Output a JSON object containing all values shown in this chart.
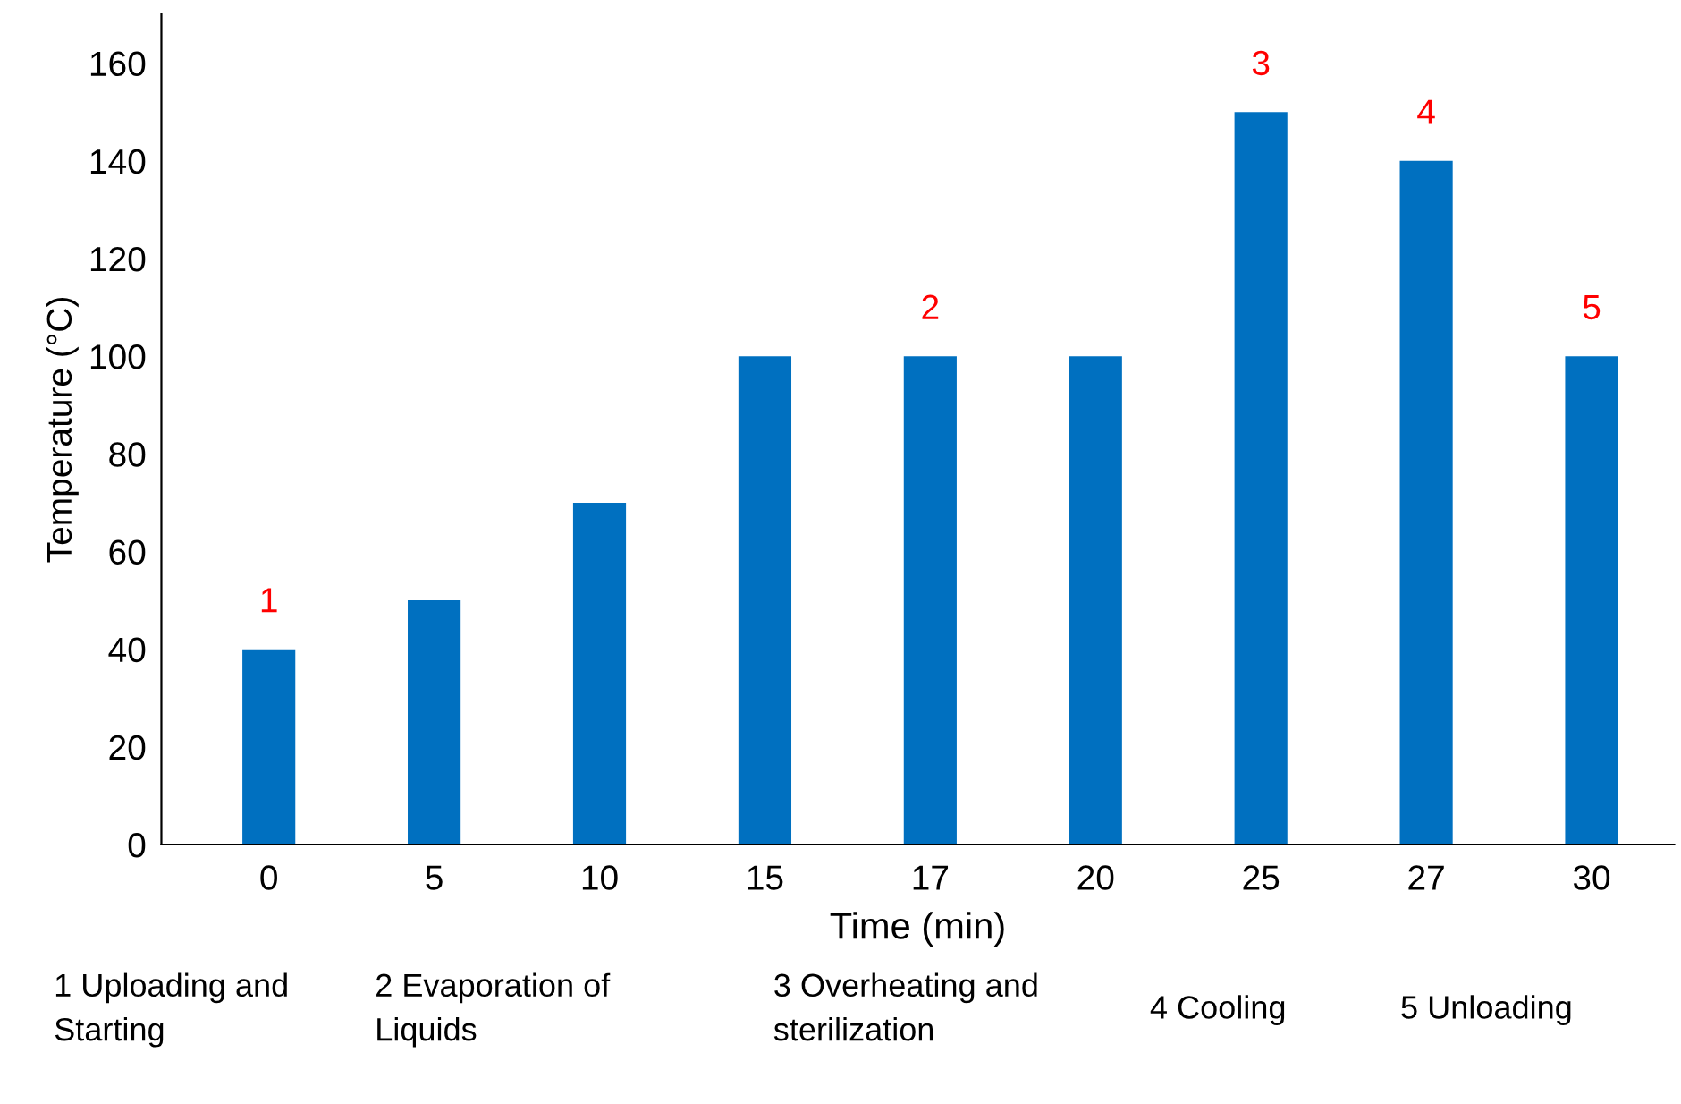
{
  "chart_data": {
    "type": "bar",
    "xlabel": "Time (min)",
    "ylabel": "Temperature (°C)",
    "categories": [
      "0",
      "5",
      "10",
      "15",
      "17",
      "20",
      "25",
      "27",
      "30"
    ],
    "values": [
      40,
      50,
      70,
      100,
      100,
      100,
      150,
      140,
      100
    ],
    "color": "#0070c0",
    "ylim": [
      0,
      170
    ],
    "yticks": [
      0,
      20,
      40,
      60,
      80,
      100,
      120,
      140,
      160
    ],
    "grid": false,
    "annotations": [
      {
        "text": "1",
        "x": "0",
        "y": 40
      },
      {
        "text": "2",
        "x": "17",
        "y": 100
      },
      {
        "text": "3",
        "x": "25",
        "y": 150
      },
      {
        "text": "4",
        "x": "27",
        "y": 140
      },
      {
        "text": "5",
        "x": "30",
        "y": 100
      },
      "1 Uploading and\nStarting",
      "2 Evaporation of\nLiquids",
      "3 Overheating and\nsterilization",
      "4 Cooling",
      "5 Unloading"
    ]
  }
}
